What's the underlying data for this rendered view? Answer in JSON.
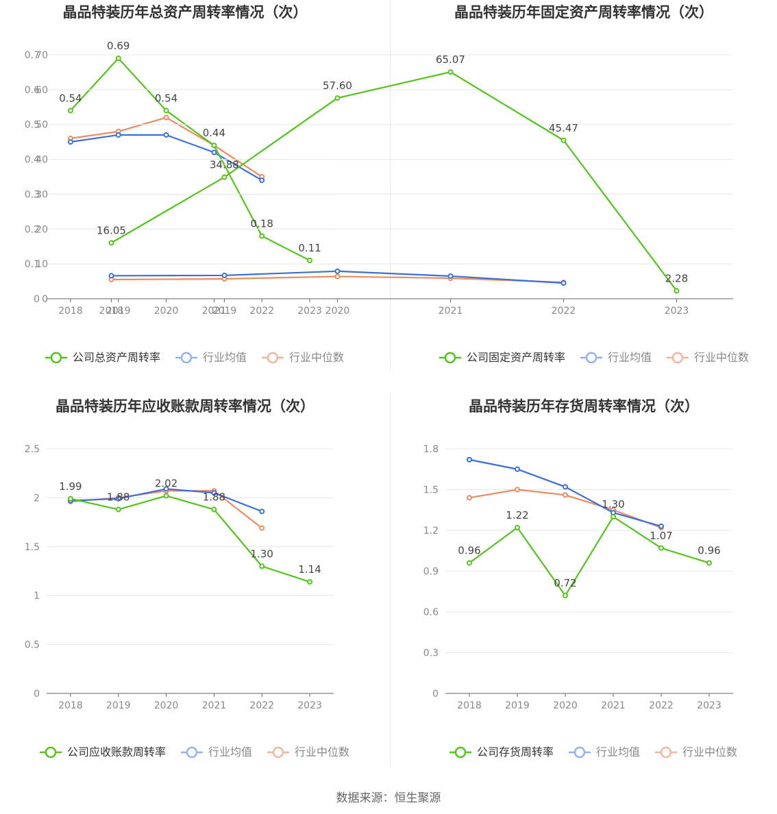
{
  "colors": {
    "company": "#52c41a",
    "avg": "#3a6fdc",
    "median": "#f08a5d",
    "avg_legend": "#93b3f0",
    "median_legend": "#f5b59a"
  },
  "source": "数据来源：恒生聚源",
  "chart_data": [
    {
      "type": "line",
      "title": "晶品特装历年总资产周转率情况（次）",
      "categories": [
        "2018",
        "2019",
        "2020",
        "2021",
        "2022",
        "2023"
      ],
      "yticks": [
        "0",
        "0.1",
        "0.2",
        "0.3",
        "0.4",
        "0.5",
        "0.6",
        "0.7"
      ],
      "ylim": [
        0,
        0.7
      ],
      "series": [
        {
          "name": "公司总资产周转率",
          "values": [
            0.54,
            0.69,
            0.54,
            0.44,
            0.18,
            0.11
          ],
          "labels": [
            "0.54",
            "0.69",
            "0.54",
            "0.44",
            "0.18",
            "0.11"
          ]
        },
        {
          "name": "行业均值",
          "values": [
            0.45,
            0.47,
            0.47,
            0.42,
            0.34,
            null
          ]
        },
        {
          "name": "行业中位数",
          "values": [
            0.46,
            0.48,
            0.52,
            0.44,
            0.35,
            null
          ]
        }
      ]
    },
    {
      "type": "line",
      "title": "晶品特装历年固定资产周转率情况（次）",
      "categories": [
        "2018",
        "2019",
        "2020",
        "2021",
        "2022",
        "2023"
      ],
      "yticks": [
        "0",
        "10",
        "20",
        "30",
        "40",
        "50",
        "60",
        "70"
      ],
      "ylim": [
        0,
        70
      ],
      "series": [
        {
          "name": "公司固定资产周转率",
          "values": [
            16.05,
            34.88,
            57.6,
            65.07,
            45.47,
            2.28
          ],
          "labels": [
            "16.05",
            "34.88",
            "57.60",
            "65.07",
            "45.47",
            "2.28"
          ]
        },
        {
          "name": "行业均值",
          "values": [
            6.6,
            6.7,
            7.9,
            6.5,
            4.5,
            null
          ]
        },
        {
          "name": "行业中位数",
          "values": [
            5.5,
            5.7,
            6.4,
            5.9,
            4.7,
            null
          ]
        }
      ]
    },
    {
      "type": "line",
      "title": "晶品特装历年应收账款周转率情况（次）",
      "categories": [
        "2018",
        "2019",
        "2020",
        "2021",
        "2022",
        "2023"
      ],
      "yticks": [
        "0",
        "0.5",
        "1",
        "1.5",
        "2",
        "2.5"
      ],
      "ylim": [
        0,
        2.5
      ],
      "series": [
        {
          "name": "公司应收账款周转率",
          "values": [
            1.99,
            1.88,
            2.02,
            1.88,
            1.3,
            1.14
          ],
          "labels": [
            "1.99",
            "1.88",
            "2.02",
            "1.88",
            "1.30",
            "1.14"
          ]
        },
        {
          "name": "行业均值",
          "values": [
            1.97,
            1.99,
            2.09,
            2.05,
            1.86,
            null
          ]
        },
        {
          "name": "行业中位数",
          "values": [
            1.96,
            2.0,
            2.07,
            2.07,
            1.69,
            null
          ]
        }
      ]
    },
    {
      "type": "line",
      "title": "晶品特装历年存货周转率情况（次）",
      "categories": [
        "2018",
        "2019",
        "2020",
        "2021",
        "2022",
        "2023"
      ],
      "yticks": [
        "0",
        "0.3",
        "0.6",
        "0.9",
        "1.2",
        "1.5",
        "1.8"
      ],
      "ylim": [
        0,
        1.8
      ],
      "series": [
        {
          "name": "公司存货周转率",
          "values": [
            0.96,
            1.22,
            0.72,
            1.3,
            1.07,
            0.96
          ],
          "labels": [
            "0.96",
            "1.22",
            "0.72",
            "1.30",
            "1.07",
            "0.96"
          ]
        },
        {
          "name": "行业均值",
          "values": [
            1.72,
            1.65,
            1.52,
            1.33,
            1.23,
            null
          ]
        },
        {
          "name": "行业中位数",
          "values": [
            1.44,
            1.5,
            1.46,
            1.35,
            1.22,
            null
          ]
        }
      ]
    }
  ]
}
